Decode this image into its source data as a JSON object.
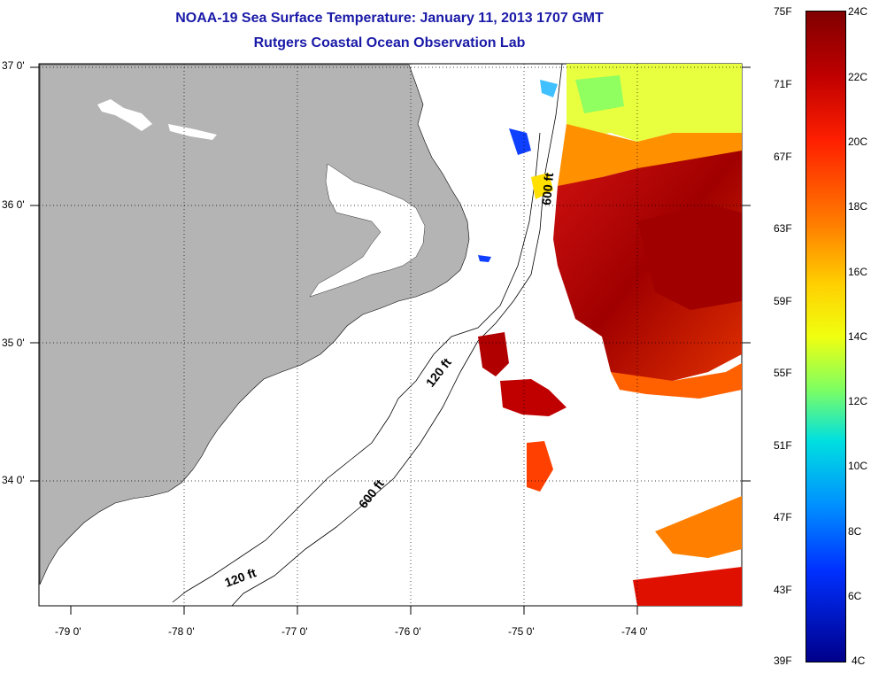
{
  "title_line1": "NOAA-19 Sea Surface Temperature:  January 11, 2013 1707 GMT",
  "title_line2": "Rutgers Coastal Ocean Observation Lab",
  "lat_labels": [
    "37 0'",
    "36 0'",
    "35 0'",
    "34 0'"
  ],
  "lon_labels": [
    "-79 0'",
    "-78 0'",
    "-77 0'",
    "-76 0'",
    "-75 0'",
    "-74 0'"
  ],
  "contour_labels": [
    "600 ft",
    "120 ft",
    "600 ft",
    "120 ft"
  ],
  "colorbar_f": [
    "75F",
    "71F",
    "67F",
    "63F",
    "59F",
    "55F",
    "51F",
    "47F",
    "43F",
    "39F"
  ],
  "colorbar_c": [
    "24C",
    "22C",
    "20C",
    "18C",
    "16C",
    "14C",
    "12C",
    "10C",
    "8C",
    "6C",
    "4C"
  ],
  "colors": {
    "land": "#b4b4b4",
    "title": "#1a1aa8"
  }
}
